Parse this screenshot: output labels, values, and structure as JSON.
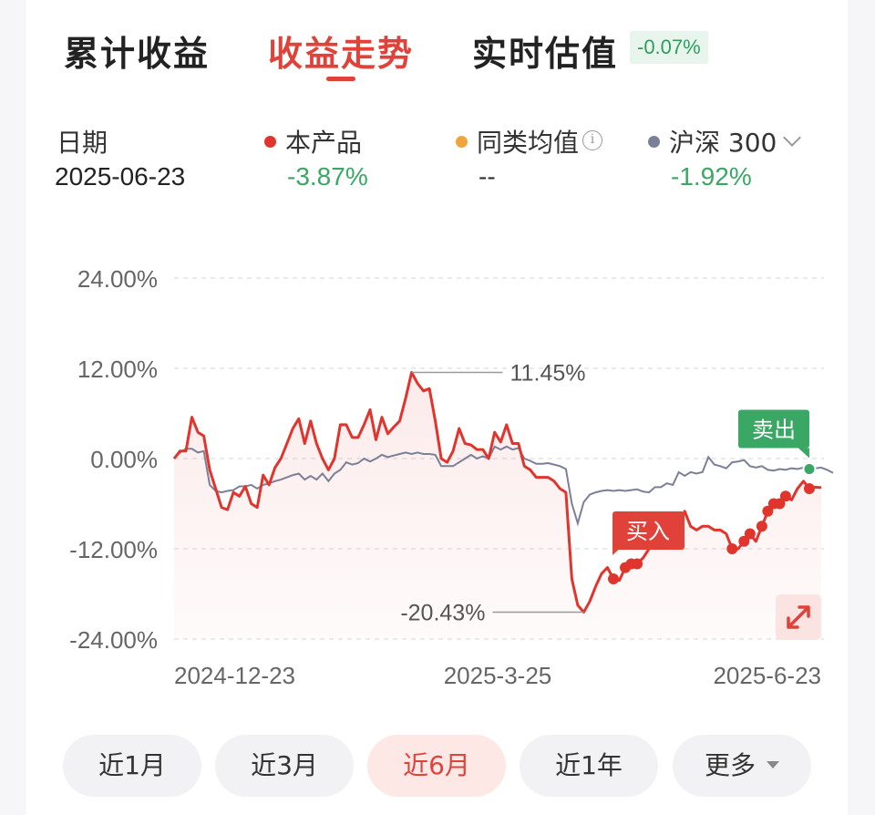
{
  "tabs": [
    {
      "label": "累计收益",
      "active": false
    },
    {
      "label": "收益走势",
      "active": true
    },
    {
      "label": "实时估值",
      "active": false
    }
  ],
  "estimate_badge": "-0.07%",
  "legend": {
    "date_label": "日期",
    "date_value": "2025-06-23",
    "product_label": "本产品",
    "product_value": "-3.87%",
    "peer_label": "同类均值",
    "peer_value": "--",
    "benchmark_label": "沪深 300",
    "benchmark_value": "-1.92%",
    "colors": {
      "product": "#e0342d",
      "peer": "#f0a53c",
      "benchmark": "#7b7f98",
      "negative": "#3aa765"
    }
  },
  "chart_data": {
    "type": "line",
    "y_ticks": [
      "24.00%",
      "12.00%",
      "0.00%",
      "-12.00%",
      "-24.00%"
    ],
    "ylim": [
      -24,
      24
    ],
    "x_tick_labels": [
      "2024-12-23",
      "2025-3-25",
      "2025-6-23"
    ],
    "grid": true,
    "annotations": {
      "max_label": "11.45%",
      "min_label": "-20.43%",
      "buy_label": "买入",
      "sell_label": "卖出"
    },
    "series": [
      {
        "name": "本产品",
        "values": [
          0,
          1,
          1,
          5.5,
          3.5,
          3,
          -1.5,
          -4,
          -6.5,
          -6.8,
          -4.5,
          -5,
          -3.7,
          -6,
          -6.5,
          -2.2,
          -3.5,
          -1.2,
          0,
          2,
          4,
          5.3,
          2,
          5,
          2,
          0,
          -1.5,
          0,
          4.5,
          4.5,
          2.8,
          2.8,
          4.5,
          6.5,
          2.5,
          5.5,
          3.3,
          4.2,
          5,
          8,
          11.45,
          10,
          9,
          9.3,
          5,
          0,
          -0.5,
          1,
          4,
          2,
          1.8,
          1.2,
          1.2,
          0,
          3.5,
          2.2,
          4.5,
          2,
          2,
          -1,
          -1.5,
          -2.5,
          -2.5,
          -2.5,
          -3,
          -4,
          -4.5,
          -16,
          -19.5,
          -20.43,
          -19,
          -17,
          -15.3,
          -14.5,
          -16,
          -16.2,
          -14.5,
          -14,
          -14,
          -13.2,
          -12,
          -11,
          -10.5,
          -9,
          -10,
          -9.5,
          -7,
          -9,
          -9.5,
          -9,
          -9,
          -9.5,
          -9.5,
          -10,
          -12,
          -12,
          -11,
          -10,
          -11,
          -9,
          -7,
          -6,
          -6,
          -5,
          -5.5,
          -4,
          -3,
          -4,
          -3.8,
          -3.87
        ]
      },
      {
        "name": "沪深 300",
        "values": [
          0,
          0.8,
          1.3,
          1.3,
          0.8,
          1,
          -3.5,
          -4.3,
          -4.5,
          -4.3,
          -4.2,
          -3.7,
          -3.7,
          -3.5,
          -4,
          -3.5,
          -3.3,
          -3,
          -2.8,
          -2.5,
          -2.2,
          -2,
          -2.8,
          -2.3,
          -2.8,
          -2,
          -3,
          -2,
          -1.5,
          -0.5,
          -0.8,
          -0.6,
          0,
          -0.4,
          0,
          0.5,
          0.2,
          0.4,
          0.6,
          0.8,
          0.6,
          0.8,
          0.6,
          0.6,
          0.5,
          -1,
          -1,
          -1,
          -0.5,
          0,
          0.5,
          0,
          0.3,
          0,
          1.6,
          1.2,
          1.6,
          1.2,
          1.4,
          0,
          -0.3,
          -0.7,
          -0.7,
          -0.6,
          -0.8,
          -1,
          -1.4,
          -6,
          -8.6,
          -5.8,
          -4.8,
          -4.5,
          -4.3,
          -4.2,
          -4.3,
          -4.2,
          -4.3,
          -4.2,
          -4.1,
          -4.4,
          -4.5,
          -3.8,
          -3.8,
          -3.3,
          -3.5,
          -1.8,
          -2.3,
          -1.8,
          -2,
          -1.8,
          0.2,
          -0.8,
          -1,
          -1.3,
          -0.5,
          -0.4,
          -0.2,
          -1,
          -1.2,
          -1,
          -1.5,
          -1.6,
          -1.4,
          -1.5,
          -1.3,
          -1.4,
          -1.2,
          -1.4,
          -1.3,
          -1.2,
          -1.5,
          -1.92
        ]
      }
    ],
    "buy_indices": [
      74,
      76,
      77,
      78
    ],
    "sell_indices": [
      94,
      96,
      97,
      99,
      100,
      101,
      102,
      103,
      107
    ]
  },
  "range_buttons": [
    {
      "label": "近1月",
      "active": false
    },
    {
      "label": "近3月",
      "active": false
    },
    {
      "label": "近6月",
      "active": true
    },
    {
      "label": "近1年",
      "active": false
    },
    {
      "label": "更多",
      "active": false
    }
  ]
}
